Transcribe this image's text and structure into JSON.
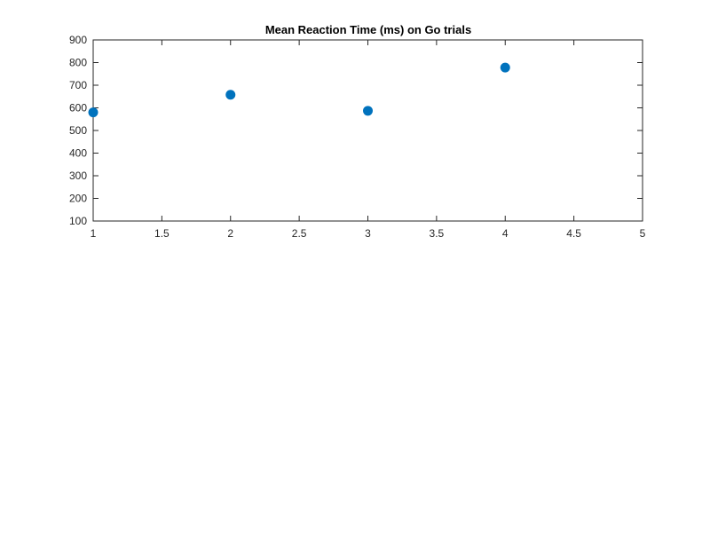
{
  "chart_data": {
    "type": "scatter",
    "title": "Mean Reaction Time (ms) on Go trials",
    "xlabel": "",
    "ylabel": "",
    "xlim": [
      1,
      5
    ],
    "ylim": [
      100,
      900
    ],
    "xticks": [
      "1",
      "1.5",
      "2",
      "2.5",
      "3",
      "3.5",
      "4",
      "4.5",
      "5"
    ],
    "yticks": [
      "100",
      "200",
      "300",
      "400",
      "500",
      "600",
      "700",
      "800",
      "900"
    ],
    "grid": false,
    "box": true,
    "marker_color": "#0072BD",
    "series": [
      {
        "x": [
          1,
          2,
          3,
          4
        ],
        "y": [
          580,
          658,
          587,
          778
        ]
      }
    ]
  }
}
